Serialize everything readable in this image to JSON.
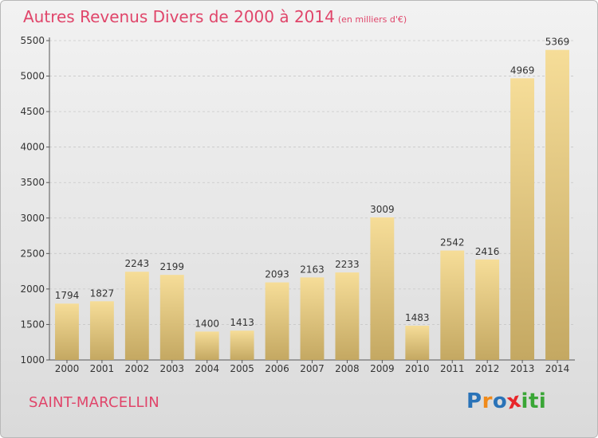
{
  "title": "Autres Revenus Divers de 2000 à 2014",
  "subtitle": "(en milliers d'€)",
  "city": "SAINT-MARCELLIN",
  "logo": {
    "letters": [
      "P",
      "r",
      "o",
      "x",
      "i",
      "t",
      "i"
    ],
    "colors": [
      "#2a73b8",
      "#f08a1a",
      "#2a73b8",
      "#e8262a",
      "#3aa636",
      "#3aa636",
      "#3aa636"
    ]
  },
  "colors": {
    "title": "#e0456a",
    "bar_light": "#f5dc97",
    "bar_dark": "#c4a862",
    "grid": "#c8c8c8"
  },
  "chart_data": {
    "type": "bar",
    "categories": [
      "2000",
      "2001",
      "2002",
      "2003",
      "2004",
      "2005",
      "2006",
      "2007",
      "2008",
      "2009",
      "2010",
      "2011",
      "2012",
      "2013",
      "2014"
    ],
    "values": [
      1794,
      1827,
      2243,
      2199,
      1400,
      1413,
      2093,
      2163,
      2233,
      3009,
      1483,
      2542,
      2416,
      4969,
      5369
    ],
    "yticks": [
      1000,
      1500,
      2000,
      2500,
      3000,
      3500,
      4000,
      4500,
      5000,
      5500
    ],
    "ylim": [
      1000,
      5500
    ],
    "grid": true,
    "data_labels": true
  }
}
